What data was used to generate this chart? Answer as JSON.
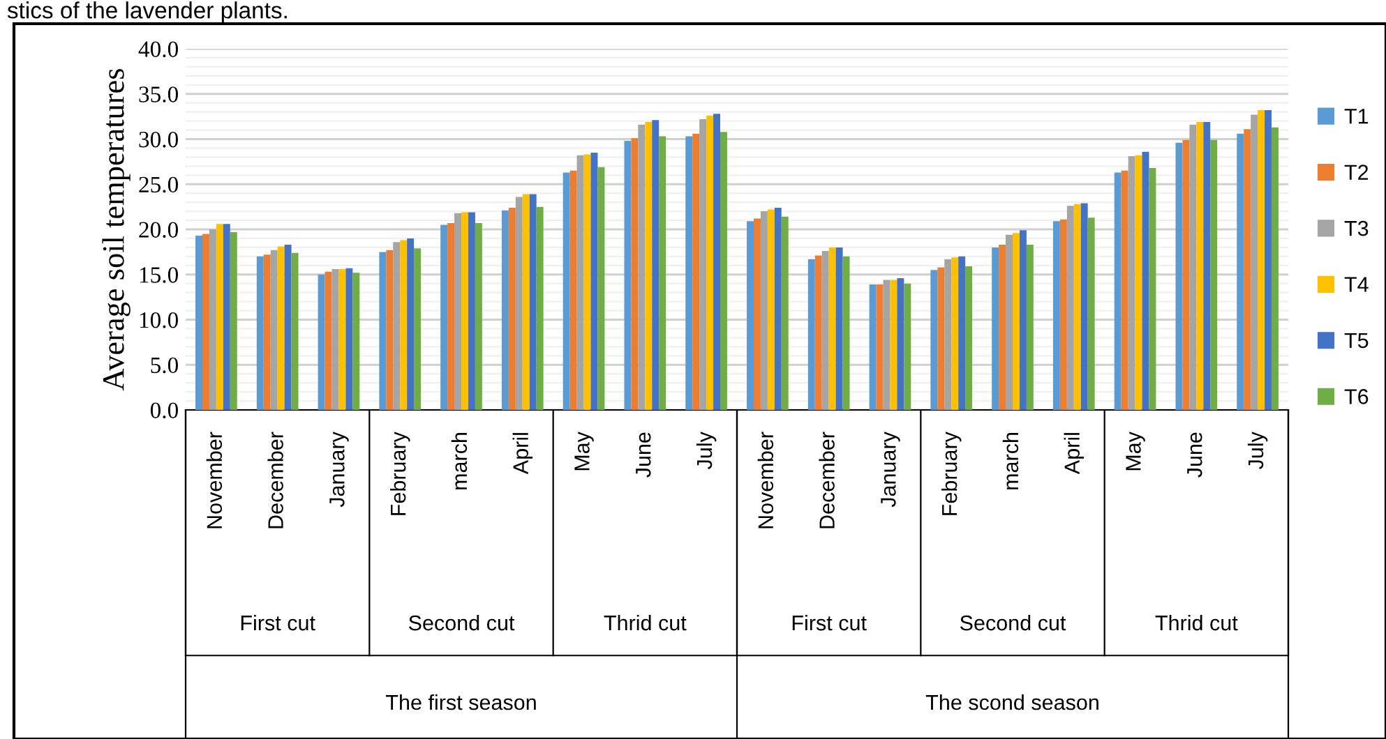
{
  "chart_data": {
    "type": "bar",
    "ylabel": "Average soil temperatures",
    "categories": [
      "November",
      "December",
      "January",
      "February",
      "march",
      "April",
      "May",
      "June",
      "July",
      "November",
      "December",
      "January",
      "February",
      "march",
      "April",
      "May",
      "June",
      "July"
    ],
    "series": [
      {
        "name": "T1",
        "color": "#5b9bd5",
        "values": [
          19.3,
          17.0,
          15.0,
          17.5,
          20.5,
          22.1,
          26.3,
          29.8,
          30.3,
          20.9,
          16.7,
          13.9,
          15.5,
          18.0,
          20.9,
          26.3,
          29.6,
          30.6
        ]
      },
      {
        "name": "T2",
        "color": "#ed7d31",
        "values": [
          19.5,
          17.2,
          15.3,
          17.7,
          20.7,
          22.4,
          26.5,
          30.1,
          30.6,
          21.2,
          17.1,
          13.9,
          15.8,
          18.3,
          21.1,
          26.5,
          29.9,
          31.1
        ]
      },
      {
        "name": "T3",
        "color": "#a5a5a5",
        "values": [
          20.0,
          17.7,
          15.6,
          18.6,
          21.8,
          23.6,
          28.2,
          31.6,
          32.2,
          22.0,
          17.6,
          14.4,
          16.7,
          19.4,
          22.6,
          28.1,
          31.6,
          32.7
        ]
      },
      {
        "name": "T4",
        "color": "#ffc000",
        "values": [
          20.6,
          18.1,
          15.6,
          18.8,
          21.9,
          23.9,
          28.3,
          31.9,
          32.6,
          22.2,
          18.0,
          14.4,
          16.9,
          19.6,
          22.8,
          28.2,
          31.9,
          33.2
        ]
      },
      {
        "name": "T5",
        "color": "#4472c4",
        "values": [
          20.6,
          18.3,
          15.7,
          19.0,
          21.9,
          23.9,
          28.5,
          32.1,
          32.8,
          22.4,
          18.0,
          14.6,
          17.0,
          19.9,
          22.9,
          28.6,
          31.9,
          33.2
        ]
      },
      {
        "name": "T6",
        "color": "#70ad47",
        "values": [
          19.7,
          17.4,
          15.2,
          17.9,
          20.7,
          22.5,
          26.9,
          30.3,
          30.8,
          21.4,
          17.0,
          14.0,
          15.9,
          18.3,
          21.3,
          26.8,
          29.9,
          31.3
        ]
      }
    ],
    "ylim": [
      0,
      40
    ],
    "yticks": [
      {
        "value": 0,
        "label": "0.0"
      },
      {
        "value": 5,
        "label": "5.0"
      },
      {
        "value": 10,
        "label": "10.0"
      },
      {
        "value": 15,
        "label": "15.0"
      },
      {
        "value": 20,
        "label": "20.0"
      },
      {
        "value": 25,
        "label": "25.0"
      },
      {
        "value": 30,
        "label": "30.0"
      },
      {
        "value": 35,
        "label": "35.0"
      },
      {
        "value": 40,
        "label": "40.0"
      }
    ],
    "grid": "y",
    "legend": "right",
    "annotations": [
      "stics of the lavender plants.",
      "First cut",
      "Second cut",
      "Thrid cut",
      "First cut",
      "Second cut",
      "Thrid cut",
      "The first season",
      "The scond season"
    ]
  }
}
